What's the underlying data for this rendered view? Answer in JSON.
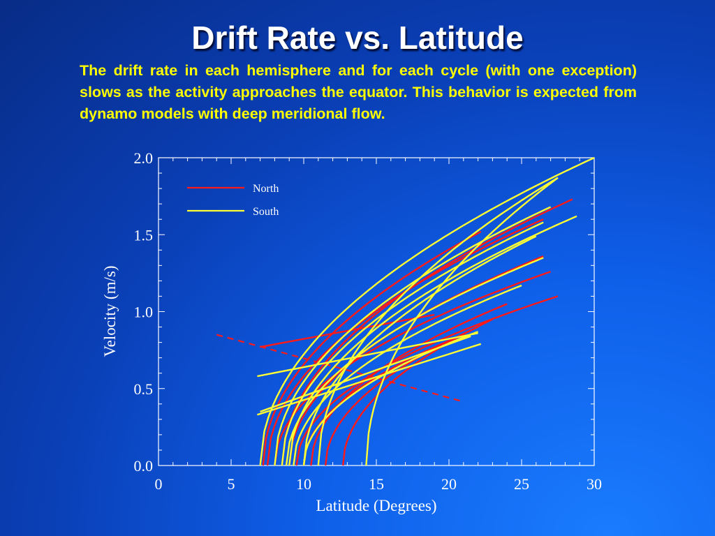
{
  "slide": {
    "title": "Drift Rate vs. Latitude",
    "description": "The drift rate in each hemisphere and for each cycle (with one exception) slows as the activity approaches the equator. This behavior is expected from dynamo models with deep meridional flow."
  },
  "colors": {
    "north": "#ff1a1a",
    "south": "#ffff33",
    "axes": "#ffffff"
  },
  "chart_data": {
    "type": "line",
    "xlabel": "Latitude (Degrees)",
    "ylabel": "Velocity (m/s)",
    "xlim": [
      0,
      30
    ],
    "ylim": [
      0,
      2.0
    ],
    "xticks": [
      "0",
      "5",
      "10",
      "15",
      "20",
      "25",
      "30"
    ],
    "yticks": [
      "0.0",
      "0.5",
      "1.0",
      "1.5",
      "2.0"
    ],
    "legend": {
      "position": "top-left",
      "entries": [
        "North",
        "South"
      ]
    },
    "series": [
      {
        "name": "North",
        "curves": [
          {
            "x0": 7.2,
            "x1": 22.2,
            "v1": 1.52
          },
          {
            "x0": 7.5,
            "x1": 26.5,
            "v1": 1.6
          },
          {
            "x0": 8.5,
            "x1": 28.5,
            "v1": 1.73
          },
          {
            "x0": 9.0,
            "x1": 26.5,
            "v1": 1.36
          },
          {
            "x0": 8.0,
            "x1": 27.0,
            "v1": 1.26
          },
          {
            "x0": 9.5,
            "x1": 27.5,
            "v1": 1.1
          },
          {
            "x0": 10.5,
            "x1": 24.0,
            "v1": 1.05
          },
          {
            "x0": 12.7,
            "x1": 23.0,
            "v1": 0.95
          },
          {
            "x0": 11.5,
            "x1": 22.0,
            "v1": 0.9
          },
          {
            "x0": 10.0,
            "x1": 21.0,
            "v1": 0.85
          }
        ],
        "lines": [
          {
            "x0": 7.0,
            "y0": 0.77,
            "x1": 19.0,
            "y1": 0.98
          }
        ],
        "dashed": [
          {
            "x0": 4.0,
            "y0": 0.85,
            "x1": 20.8,
            "y1": 0.42
          }
        ]
      },
      {
        "name": "South",
        "curves": [
          {
            "x0": 7.0,
            "x1": 30.0,
            "v1": 2.0
          },
          {
            "x0": 8.0,
            "x1": 27.0,
            "v1": 1.68
          },
          {
            "x0": 8.5,
            "x1": 26.5,
            "v1": 1.58
          },
          {
            "x0": 9.0,
            "x1": 28.8,
            "v1": 1.62
          },
          {
            "x0": 10.0,
            "x1": 26.0,
            "v1": 1.49
          },
          {
            "x0": 8.8,
            "x1": 26.5,
            "v1": 1.35
          },
          {
            "x0": 11.0,
            "x1": 27.5,
            "v1": 1.87
          },
          {
            "x0": 14.3,
            "x1": 27.5,
            "v1": 1.87
          },
          {
            "x0": 9.3,
            "x1": 25.0,
            "v1": 1.17
          },
          {
            "x0": 10.0,
            "x1": 22.0,
            "v1": 0.87
          }
        ],
        "lines": [
          {
            "x0": 6.8,
            "y0": 0.58,
            "x1": 22.0,
            "y1": 0.86
          },
          {
            "x0": 6.8,
            "y0": 0.33,
            "x1": 22.2,
            "y1": 0.79
          },
          {
            "x0": 7.0,
            "y0": 0.35,
            "x1": 21.5,
            "y1": 0.84
          }
        ]
      }
    ]
  }
}
